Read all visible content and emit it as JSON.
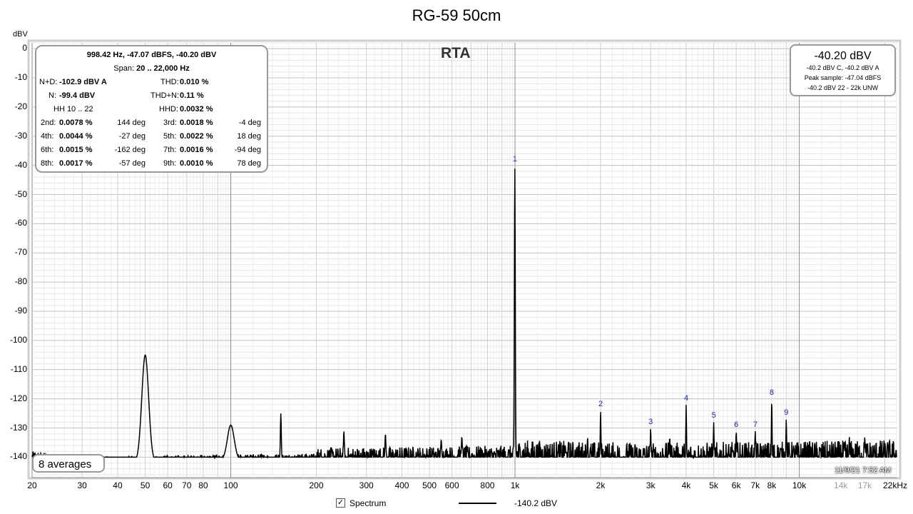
{
  "chart_data": {
    "type": "line",
    "title": "RG-59 50cm",
    "overlay_title": "RTA",
    "ylabel": "dBV",
    "xlabel": "",
    "x_scale": "log",
    "xlim": [
      20,
      22000
    ],
    "ylim": [
      -147,
      2
    ],
    "grid": true,
    "y_ticks": [
      {
        "value": 0,
        "label": "0"
      },
      {
        "value": -10,
        "label": "-10"
      },
      {
        "value": -20,
        "label": "-20"
      },
      {
        "value": -30,
        "label": "-30"
      },
      {
        "value": -40,
        "label": "-40"
      },
      {
        "value": -50,
        "label": "-50"
      },
      {
        "value": -60,
        "label": "-60"
      },
      {
        "value": -70,
        "label": "-70"
      },
      {
        "value": -80,
        "label": "-80"
      },
      {
        "value": -90,
        "label": "-90"
      },
      {
        "value": -100,
        "label": "-100"
      },
      {
        "value": -110,
        "label": "-110"
      },
      {
        "value": -120,
        "label": "-120"
      },
      {
        "value": -130,
        "label": "-130"
      },
      {
        "value": -140,
        "label": "-140"
      }
    ],
    "x_ticks": [
      {
        "value": 20,
        "label": "20"
      },
      {
        "value": 30,
        "label": "30"
      },
      {
        "value": 40,
        "label": "40"
      },
      {
        "value": 50,
        "label": "50"
      },
      {
        "value": 60,
        "label": "60"
      },
      {
        "value": 70,
        "label": "70"
      },
      {
        "value": 80,
        "label": "80"
      },
      {
        "value": 100,
        "label": "100"
      },
      {
        "value": 200,
        "label": "200"
      },
      {
        "value": 300,
        "label": "300"
      },
      {
        "value": 400,
        "label": "400"
      },
      {
        "value": 500,
        "label": "500"
      },
      {
        "value": 600,
        "label": "600"
      },
      {
        "value": 800,
        "label": "800"
      },
      {
        "value": 1000,
        "label": "1k"
      },
      {
        "value": 2000,
        "label": "2k"
      },
      {
        "value": 3000,
        "label": "3k"
      },
      {
        "value": 4000,
        "label": "4k"
      },
      {
        "value": 5000,
        "label": "5k"
      },
      {
        "value": 6000,
        "label": "6k"
      },
      {
        "value": 7000,
        "label": "7k"
      },
      {
        "value": 8000,
        "label": "8k"
      },
      {
        "value": 10000,
        "label": "10k"
      },
      {
        "value": 14000,
        "label": "14k",
        "muted": true
      },
      {
        "value": 17000,
        "label": "17k",
        "muted": true
      },
      {
        "value": 22000,
        "label": "22kHz"
      }
    ],
    "series": [
      {
        "name": "Spectrum",
        "color": "#000000",
        "noise_floor": [
          [
            20,
            -140
          ],
          [
            30,
            -142
          ],
          [
            100,
            -141
          ],
          [
            300,
            -140.5
          ],
          [
            1000,
            -140
          ],
          [
            3000,
            -141
          ],
          [
            10000,
            -140.5
          ],
          [
            22000,
            -140
          ]
        ],
        "peaks": [
          {
            "x": 50,
            "y": -105
          },
          {
            "x": 100,
            "y": -129
          },
          {
            "x": 150,
            "y": -125
          },
          {
            "x": 250,
            "y": -131
          },
          {
            "x": 350,
            "y": -132
          },
          {
            "x": 550,
            "y": -134
          },
          {
            "x": 650,
            "y": -133
          },
          {
            "x": 998.42,
            "y": -40.2
          },
          {
            "x": 1500,
            "y": -136
          },
          {
            "x": 1800,
            "y": -133
          },
          {
            "x": 2000,
            "y": -124
          },
          {
            "x": 3000,
            "y": -130
          },
          {
            "x": 3500,
            "y": -133
          },
          {
            "x": 4000,
            "y": -122
          },
          {
            "x": 5000,
            "y": -128
          },
          {
            "x": 6000,
            "y": -131
          },
          {
            "x": 7000,
            "y": -131
          },
          {
            "x": 8000,
            "y": -120
          },
          {
            "x": 9000,
            "y": -127
          },
          {
            "x": 15000,
            "y": -133
          },
          {
            "x": 17000,
            "y": -133
          }
        ]
      }
    ],
    "harmonic_markers": [
      {
        "label": "1",
        "x": 998.42,
        "y": -40.2
      },
      {
        "label": "2",
        "x": 2000,
        "y": -124
      },
      {
        "label": "3",
        "x": 3000,
        "y": -130
      },
      {
        "label": "4",
        "x": 4000,
        "y": -122
      },
      {
        "label": "5",
        "x": 5000,
        "y": -128
      },
      {
        "label": "6",
        "x": 6000,
        "y": -131
      },
      {
        "label": "7",
        "x": 7000,
        "y": -131
      },
      {
        "label": "8",
        "x": 8000,
        "y": -120
      },
      {
        "label": "9",
        "x": 9000,
        "y": -127
      }
    ]
  },
  "stats_panel": {
    "header": "998.42 Hz, -47.07 dBFS, -40.20 dBV",
    "span_label": "Span:",
    "span_value": "20 .. 22,000 Hz",
    "nd_label": "N+D:",
    "nd_value": "-102.9 dBV A",
    "thd_label": "THD:",
    "thd_value": "0.010 %",
    "n_label": "N:",
    "n_value": "-99.4 dBV",
    "thdn_label": "THD+N:",
    "thdn_value": "0.11 %",
    "hh_label": "HH 10 .. 22",
    "hhd_label": "HHD:",
    "hhd_value": "0.0032 %",
    "harmonics": [
      {
        "label": "2nd:",
        "value": "0.0078 %",
        "phase": "144 deg",
        "label2": "3rd:",
        "value2": "0.0018 %",
        "phase2": "-4 deg"
      },
      {
        "label": "4th:",
        "value": "0.0044 %",
        "phase": "-27 deg",
        "label2": "5th:",
        "value2": "0.0022 %",
        "phase2": "18 deg"
      },
      {
        "label": "6th:",
        "value": "0.0015 %",
        "phase": "-162 deg",
        "label2": "7th:",
        "value2": "0.0016 %",
        "phase2": "-94 deg"
      },
      {
        "label": "8th:",
        "value": "0.0017 %",
        "phase": "-57 deg",
        "label2": "9th:",
        "value2": "0.0010 %",
        "phase2": "78 deg"
      }
    ]
  },
  "level_panel": {
    "main": "-40.20 dBV",
    "line1": "-40.2 dBV C, -40.2 dBV A",
    "line2": "Peak sample: -47.04 dBFS",
    "line3": "-40.2 dBV 22 - 22k UNW"
  },
  "averages_label": "8 averages",
  "timestamp": "11/9/21 7:52 AM",
  "legend": {
    "checked": true,
    "check_glyph": "✓",
    "series_name": "Spectrum",
    "cursor_value": "-140.2 dBV"
  }
}
